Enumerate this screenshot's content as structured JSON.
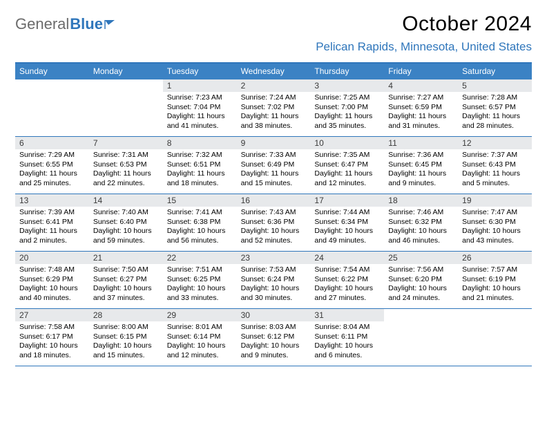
{
  "logo": {
    "text_gray": "General",
    "text_blue": "Blue"
  },
  "title": "October 2024",
  "location": "Pelican Rapids, Minnesota, United States",
  "colors": {
    "brand_blue": "#2f76bb",
    "header_blue": "#3b82c4",
    "daynum_bg": "#e7e9eb",
    "text_gray": "#6b6b6b"
  },
  "weekdays": [
    "Sunday",
    "Monday",
    "Tuesday",
    "Wednesday",
    "Thursday",
    "Friday",
    "Saturday"
  ],
  "weeks": [
    [
      {
        "empty": true
      },
      {
        "empty": true
      },
      {
        "day": "1",
        "sunrise": "Sunrise: 7:23 AM",
        "sunset": "Sunset: 7:04 PM",
        "daylight": "Daylight: 11 hours and 41 minutes."
      },
      {
        "day": "2",
        "sunrise": "Sunrise: 7:24 AM",
        "sunset": "Sunset: 7:02 PM",
        "daylight": "Daylight: 11 hours and 38 minutes."
      },
      {
        "day": "3",
        "sunrise": "Sunrise: 7:25 AM",
        "sunset": "Sunset: 7:00 PM",
        "daylight": "Daylight: 11 hours and 35 minutes."
      },
      {
        "day": "4",
        "sunrise": "Sunrise: 7:27 AM",
        "sunset": "Sunset: 6:59 PM",
        "daylight": "Daylight: 11 hours and 31 minutes."
      },
      {
        "day": "5",
        "sunrise": "Sunrise: 7:28 AM",
        "sunset": "Sunset: 6:57 PM",
        "daylight": "Daylight: 11 hours and 28 minutes."
      }
    ],
    [
      {
        "day": "6",
        "sunrise": "Sunrise: 7:29 AM",
        "sunset": "Sunset: 6:55 PM",
        "daylight": "Daylight: 11 hours and 25 minutes."
      },
      {
        "day": "7",
        "sunrise": "Sunrise: 7:31 AM",
        "sunset": "Sunset: 6:53 PM",
        "daylight": "Daylight: 11 hours and 22 minutes."
      },
      {
        "day": "8",
        "sunrise": "Sunrise: 7:32 AM",
        "sunset": "Sunset: 6:51 PM",
        "daylight": "Daylight: 11 hours and 18 minutes."
      },
      {
        "day": "9",
        "sunrise": "Sunrise: 7:33 AM",
        "sunset": "Sunset: 6:49 PM",
        "daylight": "Daylight: 11 hours and 15 minutes."
      },
      {
        "day": "10",
        "sunrise": "Sunrise: 7:35 AM",
        "sunset": "Sunset: 6:47 PM",
        "daylight": "Daylight: 11 hours and 12 minutes."
      },
      {
        "day": "11",
        "sunrise": "Sunrise: 7:36 AM",
        "sunset": "Sunset: 6:45 PM",
        "daylight": "Daylight: 11 hours and 9 minutes."
      },
      {
        "day": "12",
        "sunrise": "Sunrise: 7:37 AM",
        "sunset": "Sunset: 6:43 PM",
        "daylight": "Daylight: 11 hours and 5 minutes."
      }
    ],
    [
      {
        "day": "13",
        "sunrise": "Sunrise: 7:39 AM",
        "sunset": "Sunset: 6:41 PM",
        "daylight": "Daylight: 11 hours and 2 minutes."
      },
      {
        "day": "14",
        "sunrise": "Sunrise: 7:40 AM",
        "sunset": "Sunset: 6:40 PM",
        "daylight": "Daylight: 10 hours and 59 minutes."
      },
      {
        "day": "15",
        "sunrise": "Sunrise: 7:41 AM",
        "sunset": "Sunset: 6:38 PM",
        "daylight": "Daylight: 10 hours and 56 minutes."
      },
      {
        "day": "16",
        "sunrise": "Sunrise: 7:43 AM",
        "sunset": "Sunset: 6:36 PM",
        "daylight": "Daylight: 10 hours and 52 minutes."
      },
      {
        "day": "17",
        "sunrise": "Sunrise: 7:44 AM",
        "sunset": "Sunset: 6:34 PM",
        "daylight": "Daylight: 10 hours and 49 minutes."
      },
      {
        "day": "18",
        "sunrise": "Sunrise: 7:46 AM",
        "sunset": "Sunset: 6:32 PM",
        "daylight": "Daylight: 10 hours and 46 minutes."
      },
      {
        "day": "19",
        "sunrise": "Sunrise: 7:47 AM",
        "sunset": "Sunset: 6:30 PM",
        "daylight": "Daylight: 10 hours and 43 minutes."
      }
    ],
    [
      {
        "day": "20",
        "sunrise": "Sunrise: 7:48 AM",
        "sunset": "Sunset: 6:29 PM",
        "daylight": "Daylight: 10 hours and 40 minutes."
      },
      {
        "day": "21",
        "sunrise": "Sunrise: 7:50 AM",
        "sunset": "Sunset: 6:27 PM",
        "daylight": "Daylight: 10 hours and 37 minutes."
      },
      {
        "day": "22",
        "sunrise": "Sunrise: 7:51 AM",
        "sunset": "Sunset: 6:25 PM",
        "daylight": "Daylight: 10 hours and 33 minutes."
      },
      {
        "day": "23",
        "sunrise": "Sunrise: 7:53 AM",
        "sunset": "Sunset: 6:24 PM",
        "daylight": "Daylight: 10 hours and 30 minutes."
      },
      {
        "day": "24",
        "sunrise": "Sunrise: 7:54 AM",
        "sunset": "Sunset: 6:22 PM",
        "daylight": "Daylight: 10 hours and 27 minutes."
      },
      {
        "day": "25",
        "sunrise": "Sunrise: 7:56 AM",
        "sunset": "Sunset: 6:20 PM",
        "daylight": "Daylight: 10 hours and 24 minutes."
      },
      {
        "day": "26",
        "sunrise": "Sunrise: 7:57 AM",
        "sunset": "Sunset: 6:19 PM",
        "daylight": "Daylight: 10 hours and 21 minutes."
      }
    ],
    [
      {
        "day": "27",
        "sunrise": "Sunrise: 7:58 AM",
        "sunset": "Sunset: 6:17 PM",
        "daylight": "Daylight: 10 hours and 18 minutes."
      },
      {
        "day": "28",
        "sunrise": "Sunrise: 8:00 AM",
        "sunset": "Sunset: 6:15 PM",
        "daylight": "Daylight: 10 hours and 15 minutes."
      },
      {
        "day": "29",
        "sunrise": "Sunrise: 8:01 AM",
        "sunset": "Sunset: 6:14 PM",
        "daylight": "Daylight: 10 hours and 12 minutes."
      },
      {
        "day": "30",
        "sunrise": "Sunrise: 8:03 AM",
        "sunset": "Sunset: 6:12 PM",
        "daylight": "Daylight: 10 hours and 9 minutes."
      },
      {
        "day": "31",
        "sunrise": "Sunrise: 8:04 AM",
        "sunset": "Sunset: 6:11 PM",
        "daylight": "Daylight: 10 hours and 6 minutes."
      },
      {
        "empty": true
      },
      {
        "empty": true
      }
    ]
  ]
}
